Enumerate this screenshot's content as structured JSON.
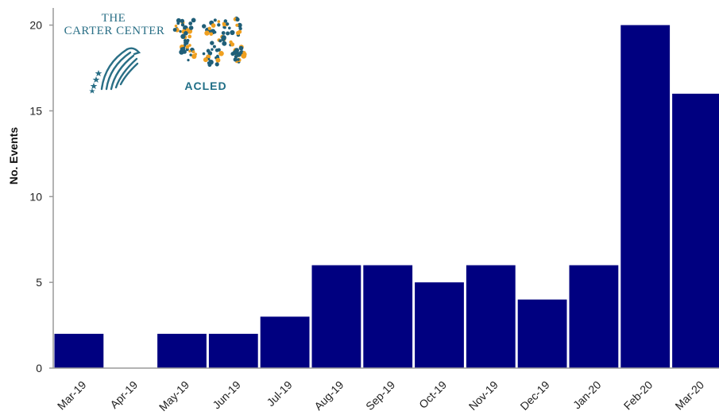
{
  "logos": {
    "carter_line1": "THE",
    "carter_line2": "CARTER CENTER",
    "acled": "ACLED"
  },
  "colors": {
    "bar": "#000080",
    "axis": "#9a9a9a",
    "carter": "#2a6f86",
    "acled_dots_a": "#1f5e78",
    "acled_dots_b": "#f0a020"
  },
  "chart_data": {
    "type": "bar",
    "categories": [
      "Mar-19",
      "Apr-19",
      "May-19",
      "Jun-19",
      "Jul-19",
      "Aug-19",
      "Sep-19",
      "Oct-19",
      "Nov-19",
      "Dec-19",
      "Jan-20",
      "Feb-20",
      "Mar-20"
    ],
    "values": [
      2,
      0,
      2,
      2,
      3,
      6,
      6,
      5,
      6,
      4,
      6,
      20,
      16
    ],
    "title": "",
    "xlabel": "",
    "ylabel": "No. Events",
    "ylim": [
      0,
      21
    ],
    "yticks": [
      0,
      5,
      10,
      15,
      20
    ],
    "grid": false,
    "legend": "none"
  }
}
